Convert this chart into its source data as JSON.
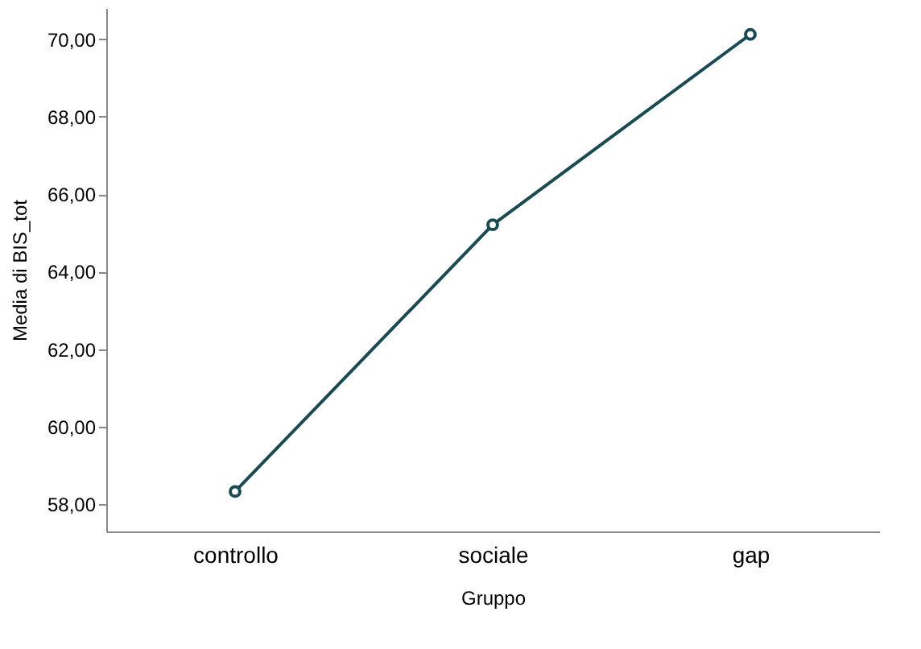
{
  "chart_data": {
    "type": "line",
    "xlabel": "Gruppo",
    "ylabel": "Media di BIS_tot",
    "categories": [
      "controllo",
      "sociale",
      "gap"
    ],
    "series": [
      {
        "color": "#1b4a52",
        "values": [
          58.33,
          65.21,
          70.12
        ]
      }
    ],
    "ylim": [
      57.3,
      70.8
    ],
    "yticks": [
      {
        "value": 58,
        "label": "58,00"
      },
      {
        "value": 60,
        "label": "60,00"
      },
      {
        "value": 62,
        "label": "62,00"
      },
      {
        "value": 64,
        "label": "64,00"
      },
      {
        "value": 66,
        "label": "66,00"
      },
      {
        "value": 68,
        "label": "68,00"
      },
      {
        "value": 70,
        "label": "70,00"
      }
    ],
    "grid": false,
    "marker": "circle",
    "line_style": "solid",
    "legend": false
  }
}
